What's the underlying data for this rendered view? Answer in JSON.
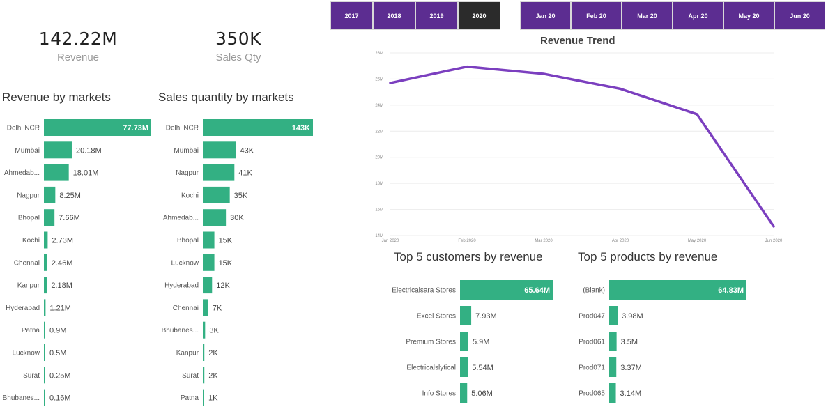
{
  "kpis": {
    "revenue": {
      "value": "142.22M",
      "label": "Revenue"
    },
    "sales_qty": {
      "value": "350K",
      "label": "Sales Qty"
    }
  },
  "year_slicer": {
    "items": [
      "2017",
      "2018",
      "2019",
      "2020"
    ],
    "selected": "2020"
  },
  "month_slicer": {
    "items": [
      "Jan 20",
      "Feb 20",
      "Mar 20",
      "Apr 20",
      "May 20",
      "Jun 20"
    ]
  },
  "colors": {
    "bar": "#33b083",
    "line": "#7b3fbf",
    "slicer": "#5c2d91",
    "slicer_selected": "#2b2b2b"
  },
  "chart_data": [
    {
      "id": "revenue_by_markets",
      "type": "bar",
      "orientation": "horizontal",
      "title": "Revenue by markets",
      "categories": [
        "Delhi NCR",
        "Mumbai",
        "Ahmedab...",
        "Nagpur",
        "Bhopal",
        "Kochi",
        "Chennai",
        "Kanpur",
        "Hyderabad",
        "Patna",
        "Lucknow",
        "Surat",
        "Bhubanes..."
      ],
      "values": [
        77.73,
        20.18,
        18.01,
        8.25,
        7.66,
        2.73,
        2.46,
        2.18,
        1.21,
        0.9,
        0.5,
        0.25,
        0.16
      ],
      "labels": [
        "77.73M",
        "20.18M",
        "18.01M",
        "8.25M",
        "7.66M",
        "2.73M",
        "2.46M",
        "2.18M",
        "1.21M",
        "0.9M",
        "0.5M",
        "0.25M",
        "0.16M"
      ],
      "unit": "M"
    },
    {
      "id": "sales_qty_by_markets",
      "type": "bar",
      "orientation": "horizontal",
      "title": "Sales quantity by markets",
      "categories": [
        "Delhi NCR",
        "Mumbai",
        "Nagpur",
        "Kochi",
        "Ahmedab...",
        "Bhopal",
        "Lucknow",
        "Hyderabad",
        "Chennai",
        "Bhubanes...",
        "Kanpur",
        "Surat",
        "Patna"
      ],
      "values": [
        143,
        43,
        41,
        35,
        30,
        15,
        15,
        12,
        7,
        3,
        2,
        2,
        1
      ],
      "labels": [
        "143K",
        "43K",
        "41K",
        "35K",
        "30K",
        "15K",
        "15K",
        "12K",
        "7K",
        "3K",
        "2K",
        "2K",
        "1K"
      ],
      "unit": "K"
    },
    {
      "id": "revenue_trend",
      "type": "line",
      "title": "Revenue Trend",
      "x": [
        "Jan 2020",
        "Feb 2020",
        "Mar 2020",
        "Apr 2020",
        "May 2020",
        "Jun 2020"
      ],
      "values": [
        25.7,
        26.95,
        26.4,
        25.25,
        23.3,
        14.7
      ],
      "y_ticks": [
        "14M",
        "16M",
        "18M",
        "20M",
        "22M",
        "24M",
        "26M",
        "28M"
      ],
      "ylim": [
        14,
        28
      ],
      "grid": true
    },
    {
      "id": "top5_customers",
      "type": "bar",
      "orientation": "horizontal",
      "title": "Top 5 customers by revenue",
      "categories": [
        "Electricalsara Stores",
        "Excel Stores",
        "Premium Stores",
        "Electricalslytical",
        "Info Stores"
      ],
      "values": [
        65.64,
        7.93,
        5.9,
        5.54,
        5.06
      ],
      "labels": [
        "65.64M",
        "7.93M",
        "5.9M",
        "5.54M",
        "5.06M"
      ],
      "unit": "M"
    },
    {
      "id": "top5_products",
      "type": "bar",
      "orientation": "horizontal",
      "title": "Top 5 products by revenue",
      "categories": [
        "(Blank)",
        "Prod047",
        "Prod061",
        "Prod071",
        "Prod065"
      ],
      "values": [
        64.83,
        3.98,
        3.5,
        3.37,
        3.14
      ],
      "labels": [
        "64.83M",
        "3.98M",
        "3.5M",
        "3.37M",
        "3.14M"
      ],
      "unit": "M"
    }
  ]
}
